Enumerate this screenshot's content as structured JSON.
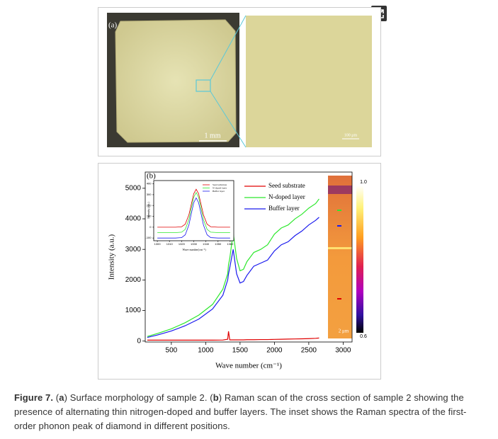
{
  "figure": {
    "panel_a_label": "(a)",
    "scale_a1": "1 mm",
    "scale_a2": "100 μm",
    "panel_b_label": "(b)",
    "map_scale": "2 μm"
  },
  "chart_data": [
    {
      "type": "line",
      "xlabel": "Wave number (cm⁻¹)",
      "ylabel": "Intensity (a.u.)",
      "x": [
        150,
        300,
        500,
        700,
        900,
        1100,
        1250,
        1320,
        1332,
        1350,
        1400,
        1450,
        1500,
        1550,
        1600,
        1700,
        1800,
        1900,
        2000,
        2100,
        2200,
        2300,
        2400,
        2500,
        2600,
        2650
      ],
      "series": [
        {
          "name": "Seed substrate",
          "color": "#e00000",
          "values": [
            30,
            30,
            30,
            30,
            30,
            30,
            35,
            60,
            320,
            40,
            40,
            40,
            40,
            40,
            45,
            45,
            50,
            50,
            55,
            60,
            65,
            70,
            75,
            80,
            90,
            100
          ]
        },
        {
          "name": "N-doped layer",
          "color": "#2ee82e",
          "values": [
            150,
            250,
            400,
            600,
            850,
            1200,
            1700,
            2200,
            2500,
            2700,
            3550,
            2700,
            2300,
            2350,
            2600,
            2900,
            3000,
            3150,
            3500,
            3700,
            3800,
            4000,
            4150,
            4350,
            4500,
            4650
          ]
        },
        {
          "name": "Buffer layer",
          "color": "#1a1aee",
          "values": [
            120,
            200,
            330,
            500,
            720,
            1050,
            1500,
            2000,
            2200,
            2400,
            3000,
            2200,
            1900,
            1950,
            2150,
            2450,
            2550,
            2650,
            2950,
            3150,
            3250,
            3450,
            3600,
            3800,
            3950,
            4050
          ]
        }
      ],
      "xlim": [
        120,
        3130
      ],
      "xticks": [
        500,
        1000,
        1500,
        2000,
        2500,
        3000
      ],
      "ylim": [
        -30,
        5530
      ],
      "yticks": [
        0,
        1000,
        2000,
        3000,
        4000,
        5000
      ],
      "colorbar": {
        "lim": [
          0.6,
          1.0
        ],
        "ticks": [
          {
            "value": 1.0,
            "label": "1.0"
          },
          0.6
        ]
      }
    },
    {
      "type": "line",
      "xlabel": "Wave number(cm⁻¹)",
      "ylabel": "Intensity (a.u.)",
      "x": [
        1300,
        1305,
        1310,
        1315,
        1320,
        1323,
        1326,
        1328,
        1330,
        1332,
        1334,
        1336,
        1338,
        1341,
        1344,
        1350,
        1355,
        1360
      ],
      "series": [
        {
          "name": "Seed substrate",
          "color": "#e00000",
          "values": [
            0,
            0,
            0,
            0,
            4,
            28,
            114,
            212,
            309,
            350,
            309,
            212,
            114,
            28,
            4,
            0,
            0,
            0
          ]
        },
        {
          "name": "N-doped layer",
          "color": "#2ee82e",
          "values": [
            -50,
            -50,
            -50,
            -50,
            -46,
            -20,
            70,
            175,
            276,
            320,
            276,
            175,
            70,
            -20,
            -46,
            -50,
            -50,
            -50
          ]
        },
        {
          "name": "Buffer layer",
          "color": "#1a1aee",
          "values": [
            -100,
            -100,
            -100,
            -100,
            -96,
            -70,
            20,
            125,
            226,
            270,
            226,
            125,
            20,
            -70,
            -96,
            -100,
            -100,
            -100
          ]
        }
      ],
      "xlim": [
        1297,
        1363
      ],
      "xticks": [
        1300,
        1310,
        1320,
        1330,
        1340,
        1350,
        1360
      ],
      "ylim": [
        -125,
        430
      ],
      "yticks": [
        -100,
        0,
        100,
        200,
        300,
        400
      ]
    }
  ],
  "caption": {
    "label": "Figure 7.",
    "parts": [
      "(",
      "a",
      ") Surface morphology of sample 2. (",
      "b",
      ") Raman scan of the cross section of sample 2 showing the presence of alternating thin nitrogen-doped and buffer layers. The inset shows the Raman spectra of the first-order phonon peak of diamond in different positions."
    ]
  }
}
